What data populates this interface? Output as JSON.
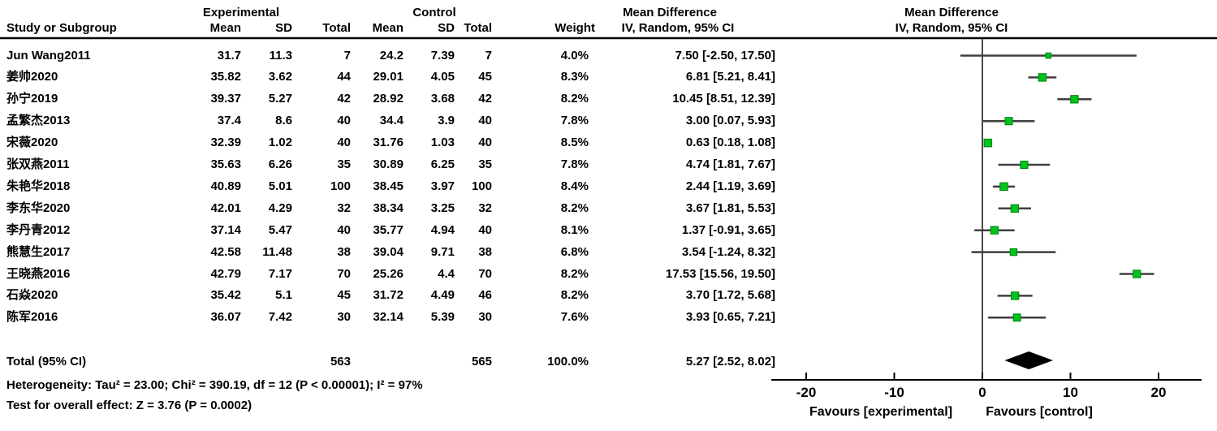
{
  "chart_data": {
    "type": "forest",
    "effect_measure": "Mean Difference",
    "model": "IV, Random, 95% CI",
    "group_headers": {
      "experimental": "Experimental",
      "control": "Control",
      "md_text": "Mean Difference",
      "md_plot": "Mean Difference"
    },
    "column_headers": {
      "study": "Study or Subgroup",
      "mean": "Mean",
      "sd": "SD",
      "total": "Total",
      "weight": "Weight",
      "iv_text": "IV, Random, 95% CI",
      "iv_plot": "IV, Random, 95% CI"
    },
    "studies": [
      {
        "name": "Jun Wang2011",
        "exp_mean": "31.7",
        "exp_sd": "11.3",
        "exp_total": "7",
        "ctl_mean": "24.2",
        "ctl_sd": "7.39",
        "ctl_total": "7",
        "weight": "4.0%",
        "ci_text": "7.50 [-2.50, 17.50]",
        "md": 7.5,
        "lo": -2.5,
        "hi": 17.5,
        "weight_pct": 4.0
      },
      {
        "name": "姜帅2020",
        "exp_mean": "35.82",
        "exp_sd": "3.62",
        "exp_total": "44",
        "ctl_mean": "29.01",
        "ctl_sd": "4.05",
        "ctl_total": "45",
        "weight": "8.3%",
        "ci_text": "6.81 [5.21, 8.41]",
        "md": 6.81,
        "lo": 5.21,
        "hi": 8.41,
        "weight_pct": 8.3
      },
      {
        "name": "孙宁2019",
        "exp_mean": "39.37",
        "exp_sd": "5.27",
        "exp_total": "42",
        "ctl_mean": "28.92",
        "ctl_sd": "3.68",
        "ctl_total": "42",
        "weight": "8.2%",
        "ci_text": "10.45 [8.51, 12.39]",
        "md": 10.45,
        "lo": 8.51,
        "hi": 12.39,
        "weight_pct": 8.2
      },
      {
        "name": "孟繁杰2013",
        "exp_mean": "37.4",
        "exp_sd": "8.6",
        "exp_total": "40",
        "ctl_mean": "34.4",
        "ctl_sd": "3.9",
        "ctl_total": "40",
        "weight": "7.8%",
        "ci_text": "3.00 [0.07, 5.93]",
        "md": 3.0,
        "lo": 0.07,
        "hi": 5.93,
        "weight_pct": 7.8
      },
      {
        "name": "宋薇2020",
        "exp_mean": "32.39",
        "exp_sd": "1.02",
        "exp_total": "40",
        "ctl_mean": "31.76",
        "ctl_sd": "1.03",
        "ctl_total": "40",
        "weight": "8.5%",
        "ci_text": "0.63 [0.18, 1.08]",
        "md": 0.63,
        "lo": 0.18,
        "hi": 1.08,
        "weight_pct": 8.5
      },
      {
        "name": "张双燕2011",
        "exp_mean": "35.63",
        "exp_sd": "6.26",
        "exp_total": "35",
        "ctl_mean": "30.89",
        "ctl_sd": "6.25",
        "ctl_total": "35",
        "weight": "7.8%",
        "ci_text": "4.74 [1.81, 7.67]",
        "md": 4.74,
        "lo": 1.81,
        "hi": 7.67,
        "weight_pct": 7.8
      },
      {
        "name": "朱艳华2018",
        "exp_mean": "40.89",
        "exp_sd": "5.01",
        "exp_total": "100",
        "ctl_mean": "38.45",
        "ctl_sd": "3.97",
        "ctl_total": "100",
        "weight": "8.4%",
        "ci_text": "2.44 [1.19, 3.69]",
        "md": 2.44,
        "lo": 1.19,
        "hi": 3.69,
        "weight_pct": 8.4
      },
      {
        "name": "李东华2020",
        "exp_mean": "42.01",
        "exp_sd": "4.29",
        "exp_total": "32",
        "ctl_mean": "38.34",
        "ctl_sd": "3.25",
        "ctl_total": "32",
        "weight": "8.2%",
        "ci_text": "3.67 [1.81, 5.53]",
        "md": 3.67,
        "lo": 1.81,
        "hi": 5.53,
        "weight_pct": 8.2
      },
      {
        "name": "李丹青2012",
        "exp_mean": "37.14",
        "exp_sd": "5.47",
        "exp_total": "40",
        "ctl_mean": "35.77",
        "ctl_sd": "4.94",
        "ctl_total": "40",
        "weight": "8.1%",
        "ci_text": "1.37 [-0.91, 3.65]",
        "md": 1.37,
        "lo": -0.91,
        "hi": 3.65,
        "weight_pct": 8.1
      },
      {
        "name": "熊慧生2017",
        "exp_mean": "42.58",
        "exp_sd": "11.48",
        "exp_total": "38",
        "ctl_mean": "39.04",
        "ctl_sd": "9.71",
        "ctl_total": "38",
        "weight": "6.8%",
        "ci_text": "3.54 [-1.24, 8.32]",
        "md": 3.54,
        "lo": -1.24,
        "hi": 8.32,
        "weight_pct": 6.8
      },
      {
        "name": "王晓燕2016",
        "exp_mean": "42.79",
        "exp_sd": "7.17",
        "exp_total": "70",
        "ctl_mean": "25.26",
        "ctl_sd": "4.4",
        "ctl_total": "70",
        "weight": "8.2%",
        "ci_text": "17.53 [15.56, 19.50]",
        "md": 17.53,
        "lo": 15.56,
        "hi": 19.5,
        "weight_pct": 8.2
      },
      {
        "name": "石焱2020",
        "exp_mean": "35.42",
        "exp_sd": "5.1",
        "exp_total": "45",
        "ctl_mean": "31.72",
        "ctl_sd": "4.49",
        "ctl_total": "46",
        "weight": "8.2%",
        "ci_text": "3.70 [1.72, 5.68]",
        "md": 3.7,
        "lo": 1.72,
        "hi": 5.68,
        "weight_pct": 8.2
      },
      {
        "name": "陈军2016",
        "exp_mean": "36.07",
        "exp_sd": "7.42",
        "exp_total": "30",
        "ctl_mean": "32.14",
        "ctl_sd": "5.39",
        "ctl_total": "30",
        "weight": "7.6%",
        "ci_text": "3.93 [0.65, 7.21]",
        "md": 3.93,
        "lo": 0.65,
        "hi": 7.21,
        "weight_pct": 7.6
      }
    ],
    "total": {
      "label": "Total (95% CI)",
      "exp_total": "563",
      "ctl_total": "565",
      "weight": "100.0%",
      "ci_text": "5.27 [2.52, 8.02]",
      "md": 5.27,
      "lo": 2.52,
      "hi": 8.02
    },
    "footnotes": {
      "heterogeneity": "Heterogeneity: Tau² = 23.00; Chi² = 390.19, df = 12 (P < 0.00001); I² = 97%",
      "overall_effect": "Test for overall effect: Z = 3.76 (P = 0.0002)"
    },
    "axis": {
      "ticks": [
        -20,
        -10,
        0,
        10,
        20
      ],
      "min": -24,
      "max": 24.8
    },
    "favours": {
      "left": "Favours [experimental]",
      "right": "Favours [control]"
    },
    "colors": {
      "marker": "#00c31c",
      "marker_border": "#007f10",
      "ci_line": "#3f3f3f",
      "diamond": "#000000",
      "axis": "#000000",
      "zero_line": "#4a4a4a",
      "header_rule": "#000000"
    }
  }
}
